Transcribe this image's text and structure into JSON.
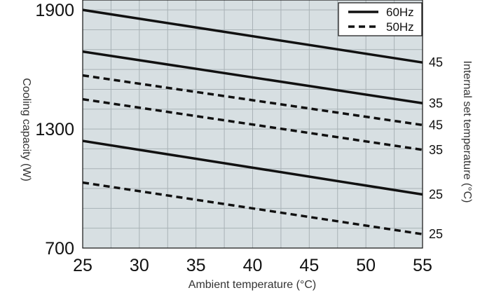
{
  "chart_data": {
    "type": "line",
    "xlabel": "Ambient temperature (°C)",
    "ylabel": "Cooling capacity (W)",
    "y2label": "Internal set temperature (°C)",
    "xlim": [
      25,
      55
    ],
    "ylim": [
      700,
      1950
    ],
    "xticks": [
      25,
      30,
      35,
      40,
      45,
      50,
      55
    ],
    "yticks": [
      700,
      1300,
      1900
    ],
    "grid": true,
    "background": "#d7dfe2",
    "legend": {
      "position": "top-right",
      "entries": [
        {
          "label": "60Hz",
          "style": "solid"
        },
        {
          "label": "50Hz",
          "style": "dashed"
        }
      ]
    },
    "series": [
      {
        "style": "solid",
        "end_label": "45",
        "x": [
          25,
          55
        ],
        "y": [
          1900,
          1635
        ]
      },
      {
        "style": "solid",
        "end_label": "35",
        "x": [
          25,
          55
        ],
        "y": [
          1690,
          1430
        ]
      },
      {
        "style": "dashed",
        "end_label": "45",
        "x": [
          25,
          55
        ],
        "y": [
          1570,
          1320
        ]
      },
      {
        "style": "dashed",
        "end_label": "35",
        "x": [
          25,
          55
        ],
        "y": [
          1450,
          1195
        ]
      },
      {
        "style": "solid",
        "end_label": "25",
        "x": [
          25,
          55
        ],
        "y": [
          1240,
          970
        ]
      },
      {
        "style": "dashed",
        "end_label": "25",
        "x": [
          25,
          55
        ],
        "y": [
          1030,
          770
        ]
      }
    ]
  }
}
